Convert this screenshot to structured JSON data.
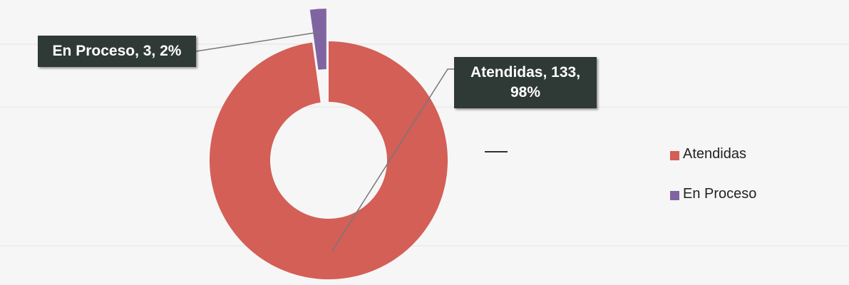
{
  "chart_data": {
    "type": "donut",
    "categories": [
      "Atendidas",
      "En Proceso"
    ],
    "values": [
      133,
      3
    ],
    "value_labels": [
      "Atendidas, 133, 98%",
      "En Proceso, 3, 2%"
    ],
    "colors": [
      "#d35f57",
      "#8064a2"
    ],
    "legend": "right"
  }
}
